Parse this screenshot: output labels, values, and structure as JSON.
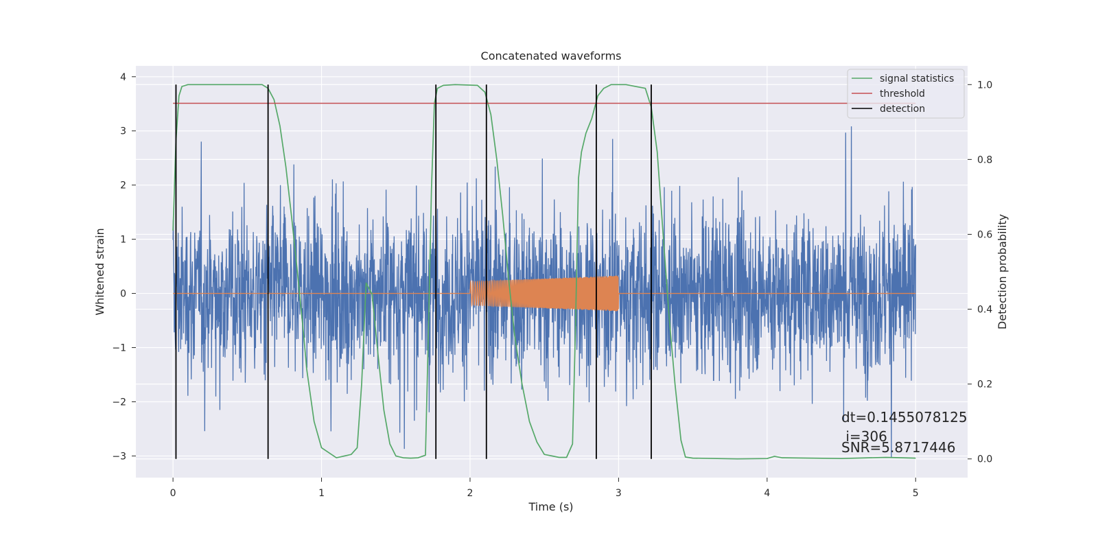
{
  "chart_data": {
    "type": "line",
    "title": "Concatenated waveforms",
    "xlabel": "Time (s)",
    "ylabel": "Whitened strain",
    "y2label": "Detection probability",
    "xlim": [
      -0.25,
      5.35
    ],
    "ylim": [
      -3.4,
      4.2
    ],
    "y2lim": [
      -0.05,
      1.05
    ],
    "xticks": [
      0,
      1,
      2,
      3,
      4,
      5
    ],
    "yticks": [
      -3,
      -2,
      -1,
      0,
      1,
      2,
      3,
      4
    ],
    "y2ticks": [
      0.0,
      0.2,
      0.4,
      0.6,
      0.8,
      1.0
    ],
    "ytick_labels": [
      "−3",
      "−2",
      "−1",
      "0",
      "1",
      "2",
      "3",
      "4"
    ],
    "y2tick_labels": [
      "0.0",
      "0.2",
      "0.4",
      "0.6",
      "0.8",
      "1.0"
    ],
    "grid": true,
    "legend_position": "top-right",
    "legend": [
      {
        "label": "signal statistics",
        "color": "#55a868"
      },
      {
        "label": "threshold",
        "color": "#c44e52"
      },
      {
        "label": "detection",
        "color": "#000000"
      }
    ],
    "noise_series": {
      "x_range": [
        0,
        5
      ],
      "amplitude_approx": 3.0,
      "color": "#4c72b0"
    },
    "injection_series": {
      "x_range": [
        2.0,
        3.0
      ],
      "amplitude_start": 0.22,
      "amplitude_end": 0.33,
      "color": "#dd8452"
    },
    "threshold": 0.95,
    "detections": [
      0.02,
      0.64,
      1.77,
      2.11,
      2.85,
      3.22
    ],
    "signal_statistics": {
      "x": [
        0.0,
        0.02,
        0.04,
        0.06,
        0.1,
        0.3,
        0.6,
        0.64,
        0.68,
        0.72,
        0.76,
        0.8,
        0.84,
        0.88,
        0.9,
        0.95,
        1.0,
        1.1,
        1.2,
        1.24,
        1.27,
        1.3,
        1.34,
        1.38,
        1.42,
        1.46,
        1.5,
        1.55,
        1.6,
        1.65,
        1.7,
        1.72,
        1.74,
        1.76,
        1.78,
        1.82,
        1.9,
        2.05,
        2.1,
        2.14,
        2.18,
        2.22,
        2.26,
        2.3,
        2.35,
        2.4,
        2.45,
        2.5,
        2.6,
        2.65,
        2.69,
        2.71,
        2.73,
        2.75,
        2.78,
        2.82,
        2.86,
        2.9,
        2.95,
        3.05,
        3.18,
        3.22,
        3.26,
        3.3,
        3.34,
        3.38,
        3.42,
        3.45,
        3.5,
        3.8,
        4.0,
        4.05,
        4.1,
        4.5,
        4.8,
        5.0
      ],
      "y": [
        0.61,
        0.85,
        0.97,
        0.995,
        1.0,
        1.0,
        1.0,
        0.99,
        0.96,
        0.89,
        0.78,
        0.64,
        0.49,
        0.33,
        0.24,
        0.1,
        0.03,
        0.003,
        0.012,
        0.03,
        0.2,
        0.47,
        0.44,
        0.28,
        0.13,
        0.04,
        0.008,
        0.003,
        0.002,
        0.003,
        0.01,
        0.35,
        0.72,
        0.95,
        0.99,
        0.998,
        1.0,
        0.998,
        0.98,
        0.92,
        0.8,
        0.65,
        0.48,
        0.33,
        0.2,
        0.1,
        0.045,
        0.012,
        0.004,
        0.004,
        0.04,
        0.35,
        0.75,
        0.82,
        0.87,
        0.91,
        0.97,
        0.99,
        1.0,
        1.0,
        0.99,
        0.94,
        0.82,
        0.6,
        0.38,
        0.2,
        0.05,
        0.005,
        0.002,
        0.0,
        0.001,
        0.007,
        0.003,
        0.001,
        0.004,
        0.002
      ]
    },
    "annotations": [
      {
        "text": "dt=0.1455078125",
        "x": 4.5,
        "y": -2.3
      },
      {
        "text": " i=306",
        "x": 4.5,
        "y": -2.62
      },
      {
        "text": "SNR=5.8717446",
        "x": 4.5,
        "y": -2.87
      }
    ]
  }
}
